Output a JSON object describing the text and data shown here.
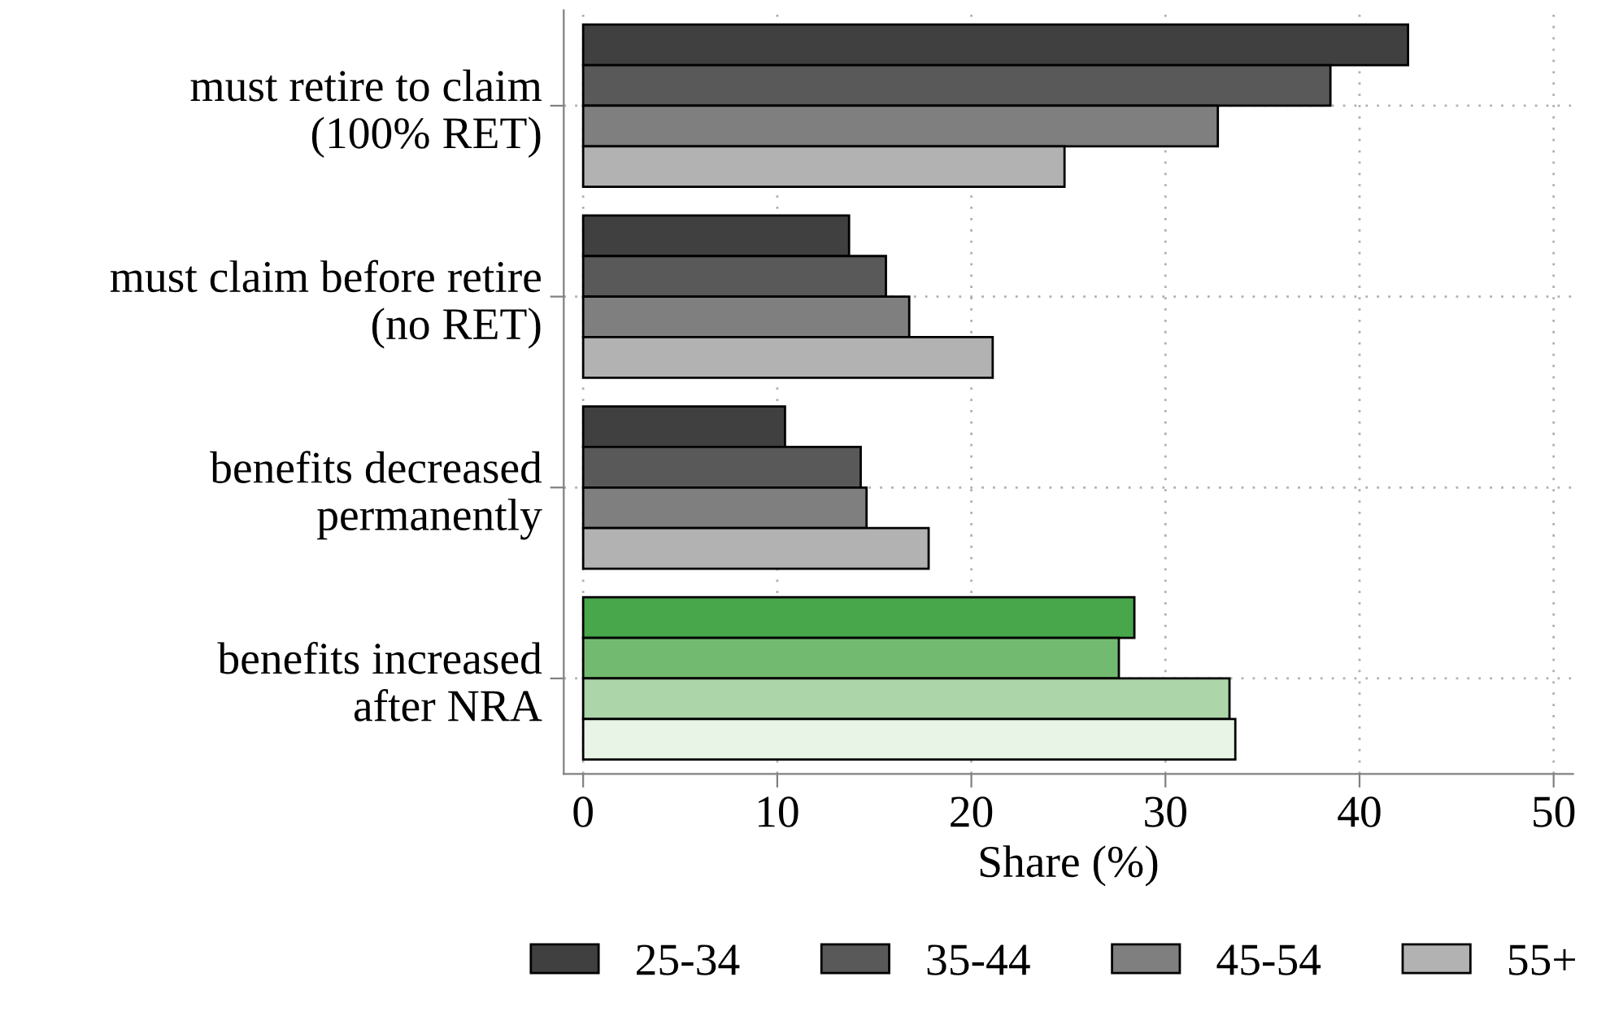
{
  "chart_data": {
    "type": "bar",
    "orientation": "horizontal",
    "xlabel": "Share (%)",
    "categories": [
      "must retire to claim\n(100% RET)",
      "must claim before retire\n(no RET)",
      "benefits decreased\npermanently",
      "benefits increased\nafter NRA"
    ],
    "series": [
      {
        "name": "25-34",
        "color": "#404040",
        "colors": [
          "#404040",
          "#404040",
          "#404040",
          "#48a64b"
        ],
        "values": [
          42.5,
          13.7,
          10.4,
          28.4
        ]
      },
      {
        "name": "35-44",
        "color": "#595959",
        "colors": [
          "#595959",
          "#595959",
          "#595959",
          "#73ba71"
        ],
        "values": [
          38.5,
          15.6,
          14.3,
          27.6
        ]
      },
      {
        "name": "45-54",
        "color": "#7f7f7f",
        "colors": [
          "#7f7f7f",
          "#7f7f7f",
          "#7f7f7f",
          "#acd6a9"
        ],
        "values": [
          32.7,
          16.8,
          14.6,
          33.3
        ]
      },
      {
        "name": "55+",
        "color": "#b2b2b2",
        "colors": [
          "#b2b2b2",
          "#b2b2b2",
          "#b2b2b2",
          "#e8f4e6"
        ],
        "values": [
          24.8,
          21.1,
          17.8,
          33.6
        ]
      }
    ],
    "xlim": [
      -1,
      51
    ],
    "xticks": [
      0,
      10,
      20,
      30,
      40,
      50
    ],
    "grid": true,
    "legend": "bottom"
  }
}
